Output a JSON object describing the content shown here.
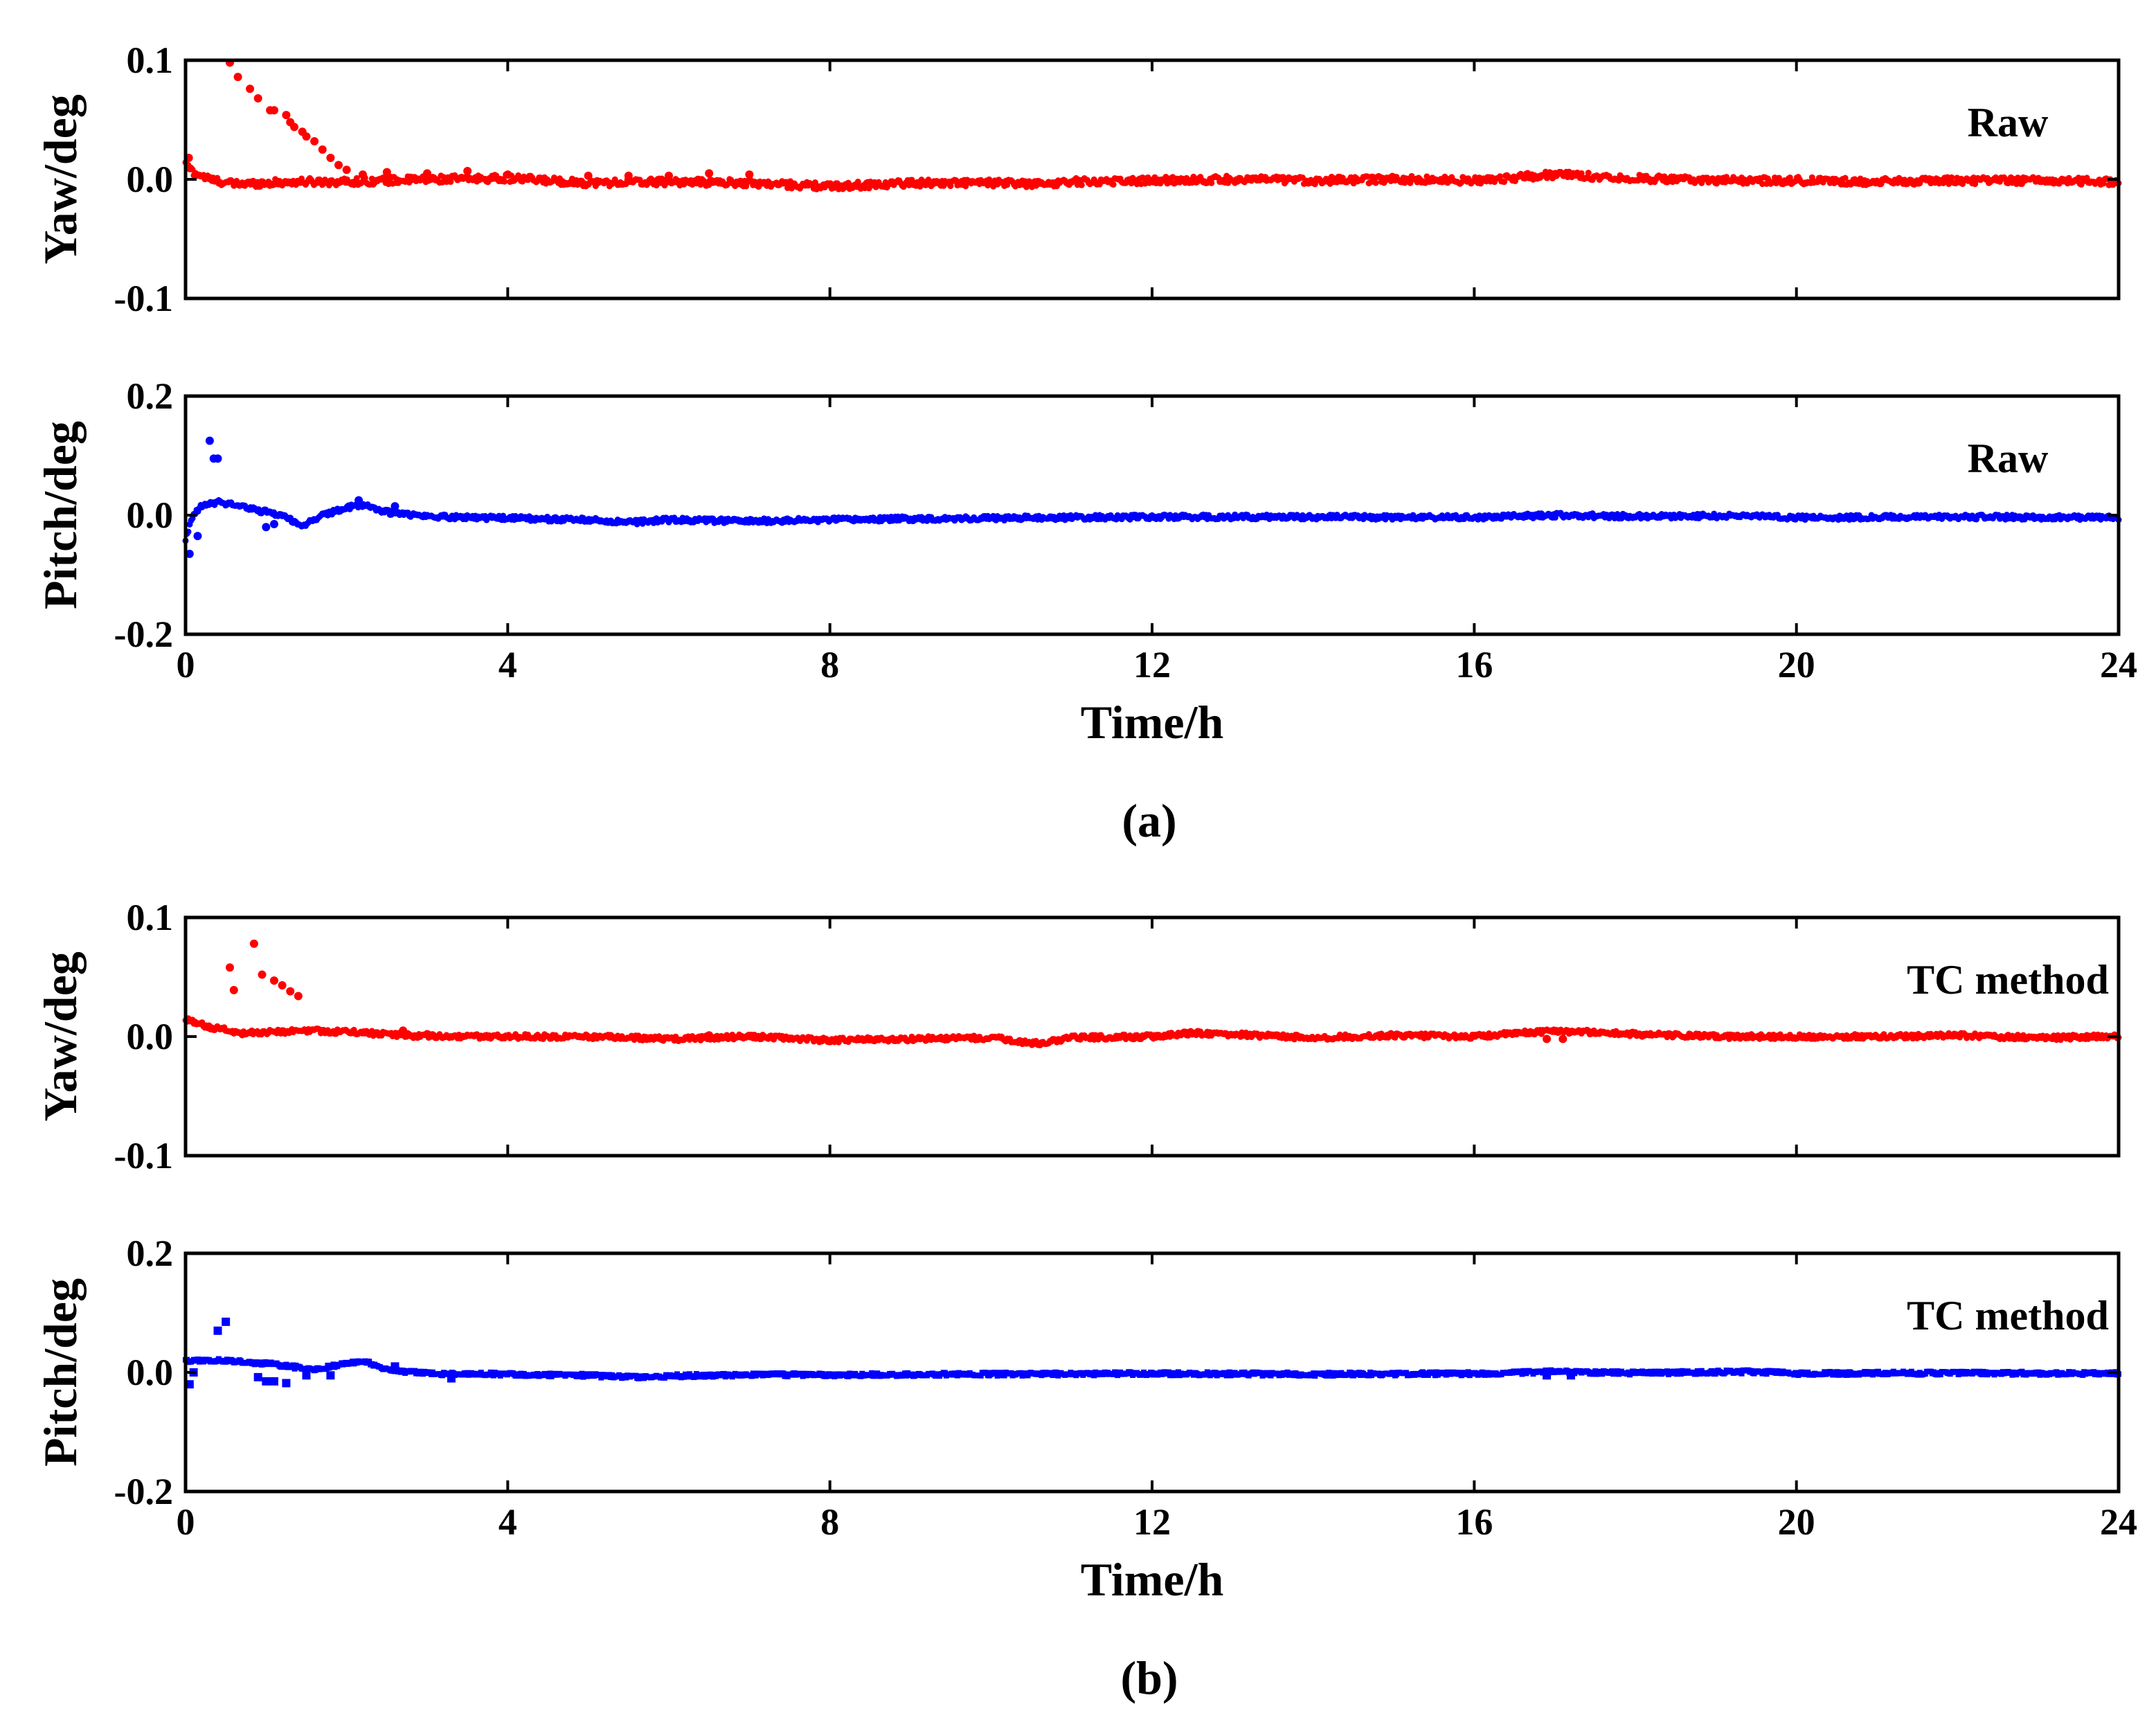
{
  "figure": {
    "caption_a": "(a)",
    "caption_b": "(b)"
  },
  "chart_data": [
    {
      "id": "a-yaw",
      "type": "scatter",
      "panel": "a",
      "title": "",
      "annotation": "Raw",
      "xlabel": "",
      "ylabel": "Yaw/deg",
      "xlim": [
        0,
        24
      ],
      "ylim": [
        -0.1,
        0.1
      ],
      "xticks": [
        0,
        4,
        8,
        12,
        16,
        20,
        24
      ],
      "yticks": [
        -0.1,
        0.0,
        0.1
      ],
      "ytick_labels": [
        "-0.1",
        "0.0",
        "0.1"
      ],
      "show_xtick_labels": false,
      "color": "#ff0000",
      "marker": "circle",
      "trend": [
        [
          0,
          0.012
        ],
        [
          0.1,
          0.006
        ],
        [
          0.3,
          0.0
        ],
        [
          0.6,
          -0.004
        ],
        [
          1,
          -0.003
        ],
        [
          1.5,
          -0.002
        ],
        [
          2,
          -0.002
        ],
        [
          3,
          0.0
        ],
        [
          4,
          0.001
        ],
        [
          5,
          -0.003
        ],
        [
          6,
          -0.002
        ],
        [
          7,
          -0.003
        ],
        [
          8,
          -0.006
        ],
        [
          9,
          -0.003
        ],
        [
          10,
          -0.003
        ],
        [
          10.6,
          -0.004
        ],
        [
          11,
          -0.002
        ],
        [
          12,
          -0.001
        ],
        [
          13,
          0.0
        ],
        [
          14,
          -0.001
        ],
        [
          15,
          0.0
        ],
        [
          16,
          -0.001
        ],
        [
          17,
          0.004
        ],
        [
          18,
          0.001
        ],
        [
          19,
          -0.001
        ],
        [
          20,
          -0.001
        ],
        [
          21,
          -0.002
        ],
        [
          22,
          -0.001
        ],
        [
          23,
          -0.001
        ],
        [
          24,
          -0.002
        ]
      ],
      "noise": 0.003,
      "outliers": [
        [
          0.04,
          0.018
        ],
        [
          0.55,
          0.098
        ],
        [
          0.65,
          0.086
        ],
        [
          0.8,
          0.076
        ],
        [
          0.9,
          0.068
        ],
        [
          1.05,
          0.058
        ],
        [
          1.1,
          0.058
        ],
        [
          1.25,
          0.054
        ],
        [
          1.3,
          0.048
        ],
        [
          1.35,
          0.044
        ],
        [
          1.45,
          0.04
        ],
        [
          1.5,
          0.036
        ],
        [
          1.6,
          0.032
        ],
        [
          1.7,
          0.025
        ],
        [
          1.8,
          0.018
        ],
        [
          1.9,
          0.012
        ],
        [
          2.0,
          0.008
        ],
        [
          2.2,
          0.004
        ],
        [
          2.5,
          0.006
        ],
        [
          3.0,
          0.005
        ],
        [
          3.5,
          0.007
        ],
        [
          4.0,
          0.004
        ],
        [
          5.0,
          0.003
        ],
        [
          5.5,
          0.003
        ],
        [
          6.0,
          0.003
        ],
        [
          6.5,
          0.005
        ],
        [
          7.0,
          0.004
        ]
      ]
    },
    {
      "id": "a-pitch",
      "type": "scatter",
      "panel": "a",
      "title": "",
      "annotation": "Raw",
      "xlabel": "Time/h",
      "ylabel": "Pitch/deg",
      "xlim": [
        0,
        24
      ],
      "ylim": [
        -0.2,
        0.2
      ],
      "xticks": [
        0,
        4,
        8,
        12,
        16,
        20,
        24
      ],
      "yticks": [
        -0.2,
        0.0,
        0.2
      ],
      "ytick_labels": [
        "-0.2",
        "0.0",
        "0.2"
      ],
      "show_xtick_labels": true,
      "color": "#0000ff",
      "marker": "circle",
      "trend": [
        [
          0,
          -0.04
        ],
        [
          0.1,
          0.0
        ],
        [
          0.2,
          0.015
        ],
        [
          0.4,
          0.022
        ],
        [
          0.6,
          0.018
        ],
        [
          0.9,
          0.008
        ],
        [
          1.2,
          0.0
        ],
        [
          1.45,
          -0.018
        ],
        [
          1.7,
          0.0
        ],
        [
          2.0,
          0.012
        ],
        [
          2.2,
          0.018
        ],
        [
          2.5,
          0.005
        ],
        [
          3.0,
          -0.002
        ],
        [
          4.0,
          -0.005
        ],
        [
          5.0,
          -0.008
        ],
        [
          5.5,
          -0.012
        ],
        [
          6.0,
          -0.008
        ],
        [
          7.0,
          -0.01
        ],
        [
          8.0,
          -0.008
        ],
        [
          9.0,
          -0.006
        ],
        [
          10.0,
          -0.005
        ],
        [
          11.0,
          -0.004
        ],
        [
          12.0,
          -0.003
        ],
        [
          14.0,
          -0.003
        ],
        [
          16.0,
          -0.004
        ],
        [
          17.0,
          0.0
        ],
        [
          18.0,
          -0.002
        ],
        [
          19.5,
          -0.001
        ],
        [
          20.0,
          -0.004
        ],
        [
          22.0,
          -0.003
        ],
        [
          24.0,
          -0.004
        ]
      ],
      "noise": 0.004,
      "outliers": [
        [
          0.05,
          -0.065
        ],
        [
          0.15,
          -0.035
        ],
        [
          0.3,
          0.125
        ],
        [
          0.35,
          0.095
        ],
        [
          0.4,
          0.095
        ],
        [
          1.0,
          -0.02
        ],
        [
          1.1,
          -0.015
        ],
        [
          2.15,
          0.025
        ],
        [
          2.6,
          0.015
        ]
      ]
    },
    {
      "id": "b-yaw",
      "type": "scatter",
      "panel": "b",
      "title": "",
      "annotation": "TC method",
      "xlabel": "",
      "ylabel": "Yaw/deg",
      "xlim": [
        0,
        24
      ],
      "ylim": [
        -0.1,
        0.1
      ],
      "xticks": [
        0,
        4,
        8,
        12,
        16,
        20,
        24
      ],
      "yticks": [
        -0.1,
        0.0,
        0.1
      ],
      "ytick_labels": [
        "-0.1",
        "0.0",
        "0.1"
      ],
      "show_xtick_labels": false,
      "color": "#ff0000",
      "marker": "circle",
      "trend": [
        [
          0,
          0.014
        ],
        [
          0.3,
          0.008
        ],
        [
          0.7,
          0.003
        ],
        [
          1.5,
          0.005
        ],
        [
          2.0,
          0.004
        ],
        [
          3.0,
          0.0
        ],
        [
          4.0,
          0.0
        ],
        [
          5.0,
          0.0
        ],
        [
          6.0,
          -0.002
        ],
        [
          7.0,
          0.0
        ],
        [
          8.0,
          -0.003
        ],
        [
          9.0,
          -0.002
        ],
        [
          10.0,
          -0.001
        ],
        [
          10.6,
          -0.006
        ],
        [
          11.0,
          -0.001
        ],
        [
          12.0,
          0.0
        ],
        [
          12.5,
          0.003
        ],
        [
          13.0,
          0.002
        ],
        [
          14.0,
          -0.001
        ],
        [
          15.0,
          0.001
        ],
        [
          16.0,
          0.0
        ],
        [
          17.0,
          0.005
        ],
        [
          18.0,
          0.002
        ],
        [
          19.0,
          0.0
        ],
        [
          20.0,
          0.0
        ],
        [
          21.0,
          0.0
        ],
        [
          22.0,
          0.001
        ],
        [
          23.0,
          -0.001
        ],
        [
          24.0,
          0.0
        ]
      ],
      "noise": 0.002,
      "outliers": [
        [
          0.55,
          0.058
        ],
        [
          0.6,
          0.039
        ],
        [
          0.85,
          0.078
        ],
        [
          0.95,
          0.052
        ],
        [
          1.1,
          0.047
        ],
        [
          1.2,
          0.043
        ],
        [
          1.3,
          0.038
        ],
        [
          1.4,
          0.034
        ],
        [
          2.7,
          0.005
        ],
        [
          3.0,
          0.002
        ],
        [
          6.5,
          0.001
        ],
        [
          16.9,
          -0.002
        ],
        [
          17.1,
          -0.002
        ]
      ]
    },
    {
      "id": "b-pitch",
      "type": "scatter",
      "panel": "b",
      "title": "",
      "annotation": "TC method",
      "xlabel": "Time/h",
      "ylabel": "Pitch/deg",
      "xlim": [
        0,
        24
      ],
      "ylim": [
        -0.2,
        0.2
      ],
      "xticks": [
        0,
        4,
        8,
        12,
        16,
        20,
        24
      ],
      "yticks": [
        -0.2,
        0.0,
        0.2
      ],
      "ytick_labels": [
        "-0.2",
        "0.0",
        "0.2"
      ],
      "show_xtick_labels": true,
      "color": "#0000ff",
      "marker": "square",
      "trend": [
        [
          0,
          0.02
        ],
        [
          0.5,
          0.02
        ],
        [
          1.0,
          0.015
        ],
        [
          1.3,
          0.01
        ],
        [
          1.6,
          0.005
        ],
        [
          2.0,
          0.015
        ],
        [
          2.2,
          0.02
        ],
        [
          2.5,
          0.005
        ],
        [
          3.0,
          -0.002
        ],
        [
          4.0,
          -0.003
        ],
        [
          5.0,
          -0.005
        ],
        [
          5.5,
          -0.008
        ],
        [
          6.0,
          -0.006
        ],
        [
          7.0,
          -0.004
        ],
        [
          8.0,
          -0.004
        ],
        [
          10.0,
          -0.003
        ],
        [
          12.0,
          -0.002
        ],
        [
          14.0,
          -0.003
        ],
        [
          16.0,
          -0.002
        ],
        [
          17.0,
          0.001
        ],
        [
          18.0,
          -0.001
        ],
        [
          19.5,
          0.001
        ],
        [
          20.0,
          -0.002
        ],
        [
          22.0,
          -0.001
        ],
        [
          24.0,
          -0.002
        ]
      ],
      "noise": 0.003,
      "outliers": [
        [
          0.05,
          -0.02
        ],
        [
          0.1,
          0.0
        ],
        [
          0.4,
          0.07
        ],
        [
          0.5,
          0.085
        ],
        [
          0.9,
          -0.008
        ],
        [
          1.0,
          -0.015
        ],
        [
          1.1,
          -0.015
        ],
        [
          1.25,
          -0.018
        ],
        [
          1.5,
          -0.005
        ],
        [
          1.8,
          -0.005
        ],
        [
          2.6,
          0.01
        ],
        [
          3.3,
          -0.01
        ],
        [
          16.9,
          -0.005
        ],
        [
          17.2,
          -0.005
        ]
      ]
    }
  ]
}
